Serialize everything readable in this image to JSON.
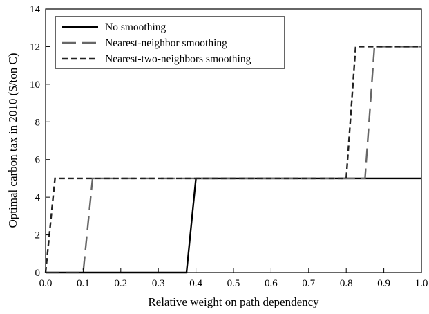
{
  "chart_data": {
    "type": "line",
    "title": "",
    "xlabel": "Relative weight on path dependency",
    "ylabel": "Optimal carbon tax in 2010 ($/ton C)",
    "xlim": [
      0.0,
      1.0
    ],
    "ylim": [
      0,
      14
    ],
    "xticks": [
      "0.0",
      "0.1",
      "0.2",
      "0.3",
      "0.4",
      "0.5",
      "0.6",
      "0.7",
      "0.8",
      "0.9",
      "1.0"
    ],
    "yticks": [
      "0",
      "2",
      "4",
      "6",
      "8",
      "10",
      "12",
      "14"
    ],
    "grid": false,
    "legend_position": "top-left",
    "series": [
      {
        "name": "No smoothing",
        "color": "#000000",
        "dash": "solid",
        "x": [
          0.0,
          0.375,
          0.4,
          1.0
        ],
        "y": [
          0,
          0,
          5,
          5
        ]
      },
      {
        "name": "Nearest-neighbor smoothing",
        "color": "#666666",
        "dash": "long-dash",
        "x": [
          0.0,
          0.1,
          0.125,
          0.85,
          0.875,
          1.0
        ],
        "y": [
          0,
          0,
          5,
          5,
          12,
          12
        ]
      },
      {
        "name": "Nearest-two-neighbors smoothing",
        "color": "#222222",
        "dash": "short-dash",
        "x": [
          0.0,
          0.025,
          0.8,
          0.825,
          1.0
        ],
        "y": [
          0,
          5,
          5,
          12,
          12
        ]
      }
    ]
  }
}
